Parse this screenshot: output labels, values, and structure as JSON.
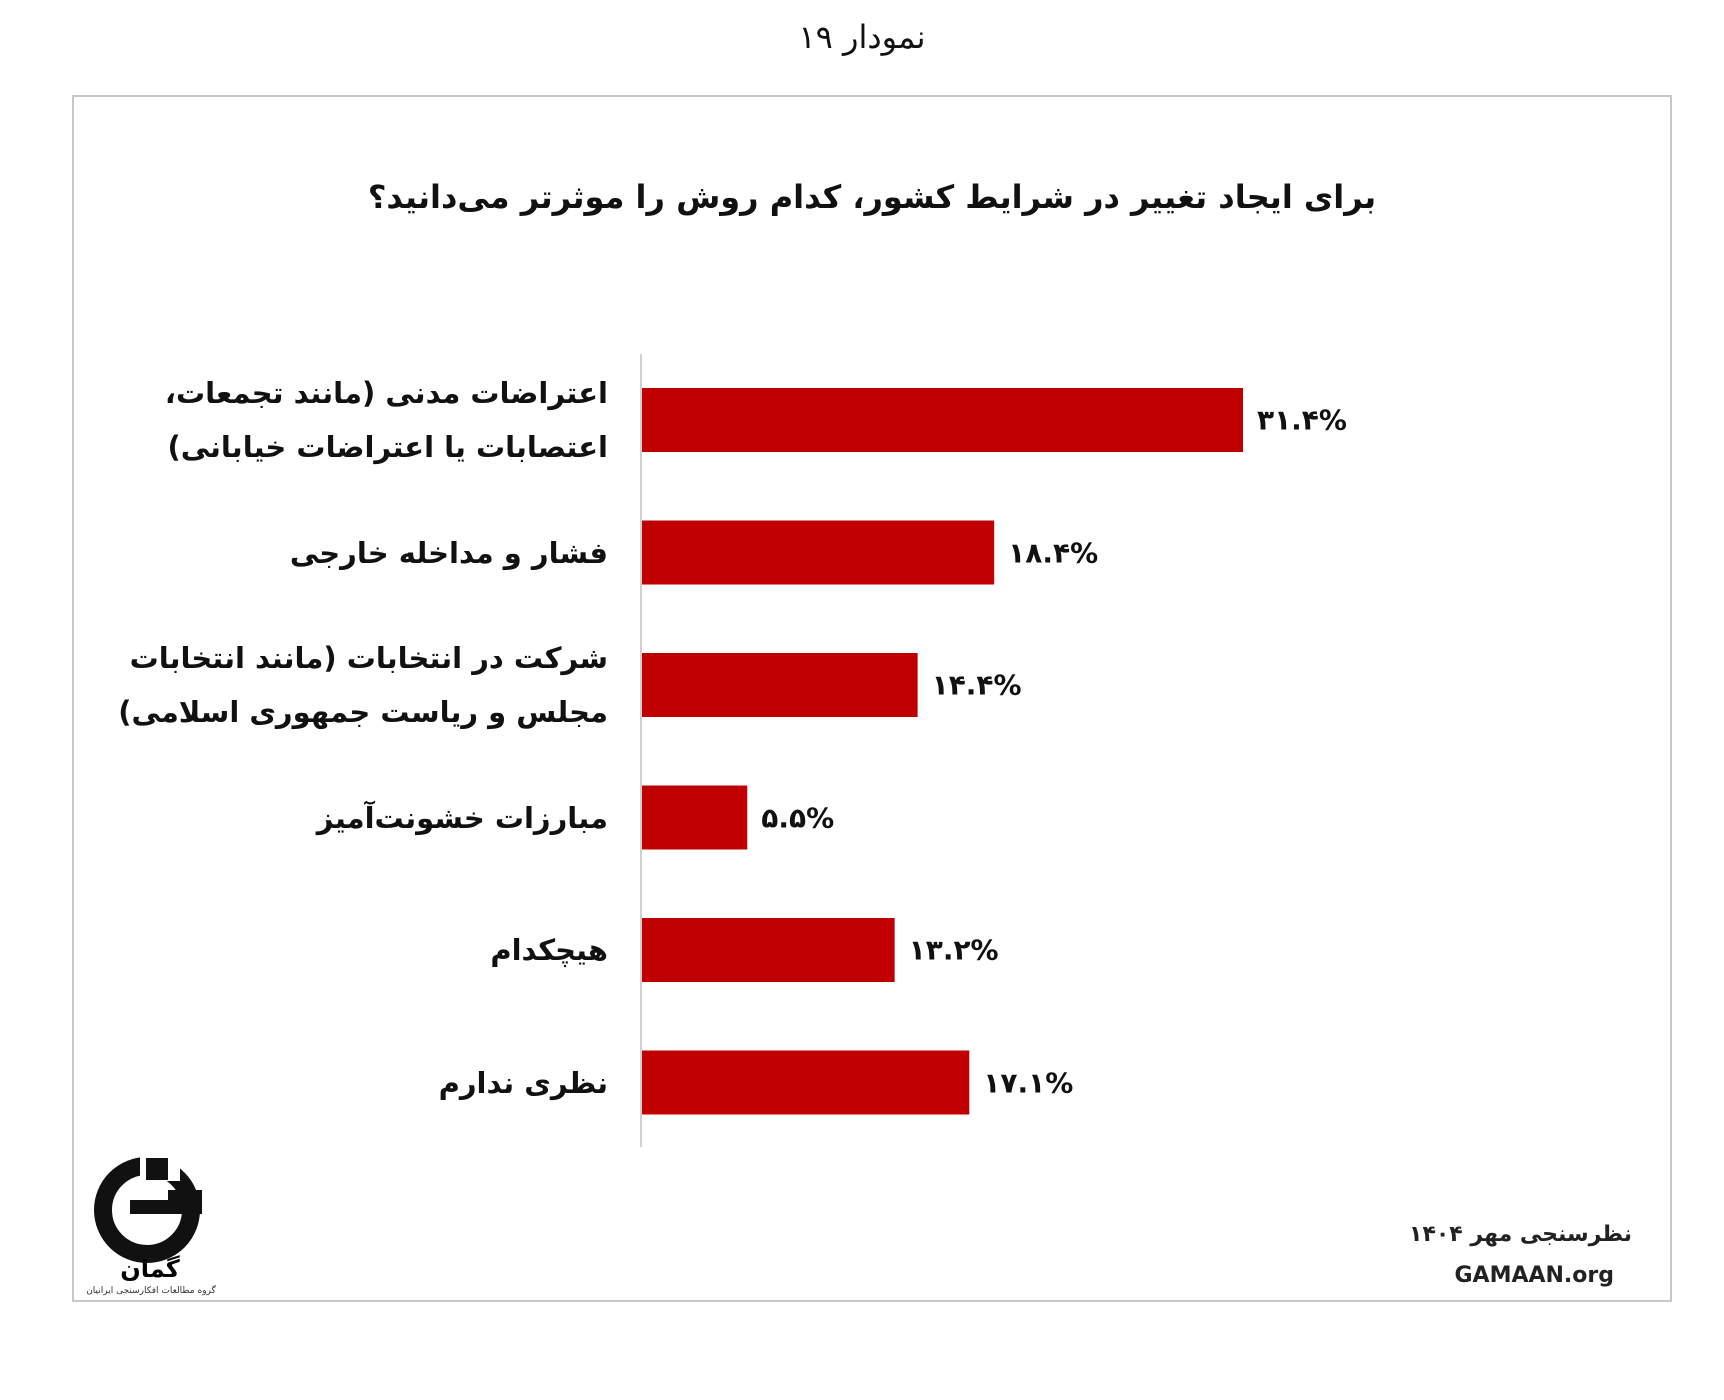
{
  "page_title": "نمودار ۱۹",
  "chart_data": {
    "type": "bar",
    "orientation": "horizontal",
    "title": "برای ایجاد تغییر در شرایط کشور، کدام روش را موثرتر می‌دانید؟",
    "categories": [
      "اعتراضات مدنی (مانند تجمعات،\nاعتصابات یا اعتراضات خیابانی)",
      "فشار و مداخله خارجی",
      "شرکت در انتخابات (مانند انتخابات\nمجلس و ریاست جمهوری اسلامی)",
      "مبارزات خشونت‌آمیز",
      "هیچکدام",
      "نظری ندارم"
    ],
    "values": [
      31.4,
      18.4,
      14.4,
      5.5,
      13.2,
      17.1
    ],
    "value_labels": [
      "۳۱.۴%",
      "۱۸.۴%",
      "۱۴.۴%",
      "۵.۵%",
      "۱۳.۲%",
      "۱۷.۱%"
    ],
    "color": "#c00000"
  },
  "footer": {
    "survey": "نظرسنجی مهر ۱۴۰۴",
    "website": "GAMAAN.org"
  },
  "logo": {
    "name": "گمان",
    "tagline": "گروه مطالعات افکارسنجی ایرانیان"
  }
}
